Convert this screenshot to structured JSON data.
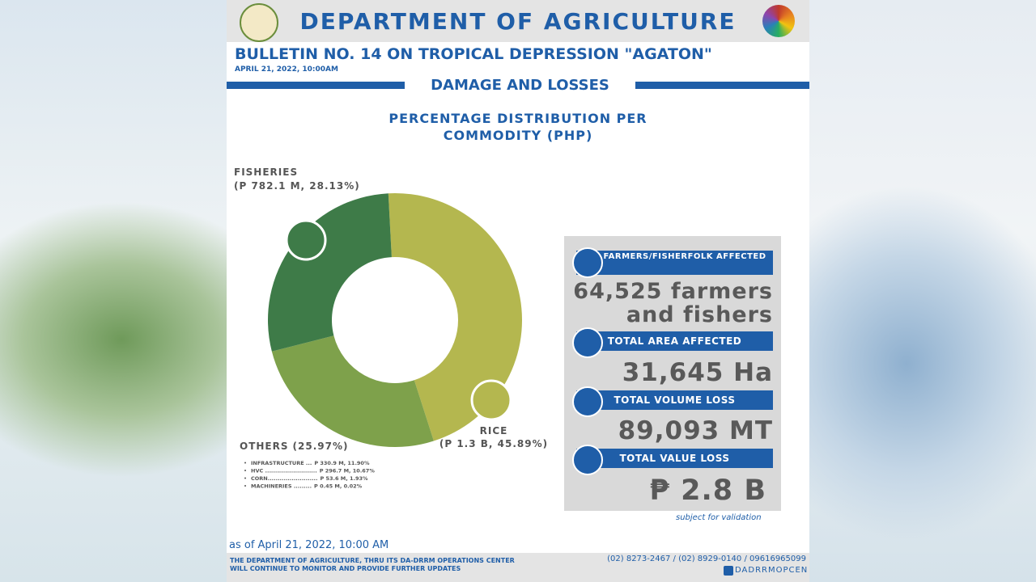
{
  "header": {
    "title": "DEPARTMENT OF AGRICULTURE"
  },
  "bulletin": {
    "title": "BULLETIN NO. 14 ON TROPICAL DEPRESSION \"AGATON\"",
    "date": "APRIL 21, 2022, 10:00AM",
    "section": "DAMAGE AND LOSSES"
  },
  "chart_data": {
    "type": "pie",
    "donut": true,
    "title": "PERCENTAGE DISTRIBUTION PER COMMODITY (PHP)",
    "categories": [
      "RICE",
      "OTHERS",
      "FISHERIES"
    ],
    "values": [
      45.89,
      25.97,
      28.13
    ],
    "value_labels": [
      "(P 1.3 B, 45.89%)",
      "(25.97%)",
      "(P 782.1 M, 28.13%)"
    ],
    "colors": [
      "#b4b74f",
      "#7ea14b",
      "#3e7b48"
    ],
    "others_breakdown": [
      {
        "label": "INFRASTRUCTURE ...",
        "detail": "P 330.9 M, 11.90%"
      },
      {
        "label": "HVC ..........................",
        "detail": "P 296.7 M, 10.67%"
      },
      {
        "label": "CORN.........................",
        "detail": "P 53.6 M, 1.93%"
      },
      {
        "label": "MACHINERIES .........",
        "detail": "P 0.45 M, 0.02%"
      }
    ]
  },
  "stats": [
    {
      "label": "FARMERS/FISHERFOLK AFFECTED",
      "value": "64,525 farmers and fishers"
    },
    {
      "label": "TOTAL AREA AFFECTED",
      "value": "31,645 Ha"
    },
    {
      "label": "TOTAL VOLUME LOSS",
      "value": "89,093 MT"
    },
    {
      "label": "TOTAL VALUE LOSS",
      "value": "₱ 2.8 B"
    }
  ],
  "note": "subject for validation",
  "footer": {
    "as_of": "as of April 21, 2022, 10:00 AM",
    "message": "THE DEPARTMENT OF AGRICULTURE, THRU ITS DA-DRRM OPERATIONS CENTER WILL CONTINUE TO MONITOR AND PROVIDE FURTHER UPDATES",
    "phones": "(02) 8273-2467 / (02) 8929-0140 / 09616965099",
    "facebook": "DADRRMOPCEN"
  }
}
